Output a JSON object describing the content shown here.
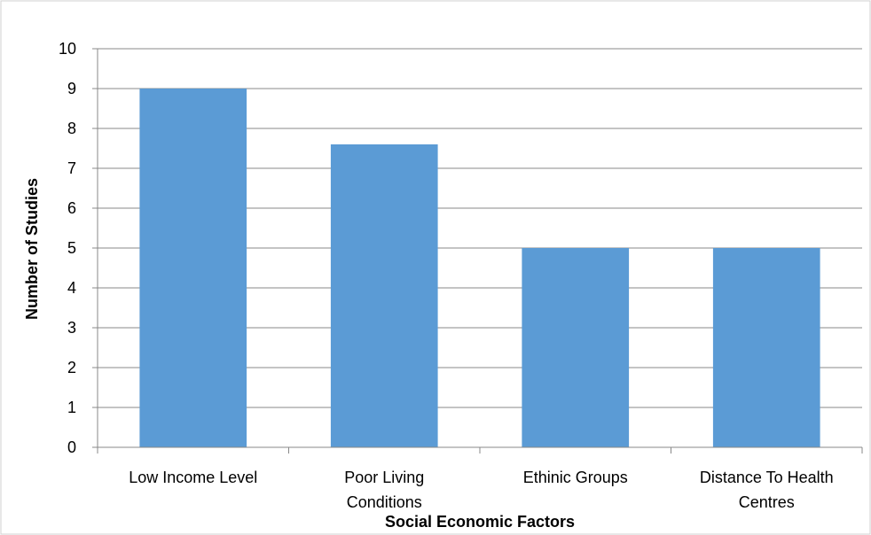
{
  "chart_data": {
    "type": "bar",
    "title": "",
    "xlabel": "Social Economic Factors",
    "ylabel": "Number of Studies",
    "categories": [
      [
        "Low Income Level"
      ],
      [
        "Poor Living",
        "Conditions"
      ],
      [
        "Ethinic Groups"
      ],
      [
        "Distance To Health",
        "Centres"
      ]
    ],
    "values": [
      9,
      7.6,
      5,
      5
    ],
    "ylim": [
      0,
      10
    ],
    "yticks": [
      0,
      1,
      2,
      3,
      4,
      5,
      6,
      7,
      8,
      9,
      10
    ],
    "grid": "horizontal",
    "legend": "none",
    "colors": {
      "bar": "#5B9BD5",
      "grid": "#888888",
      "axis": "#888888",
      "border": "#d0d0d0"
    }
  }
}
